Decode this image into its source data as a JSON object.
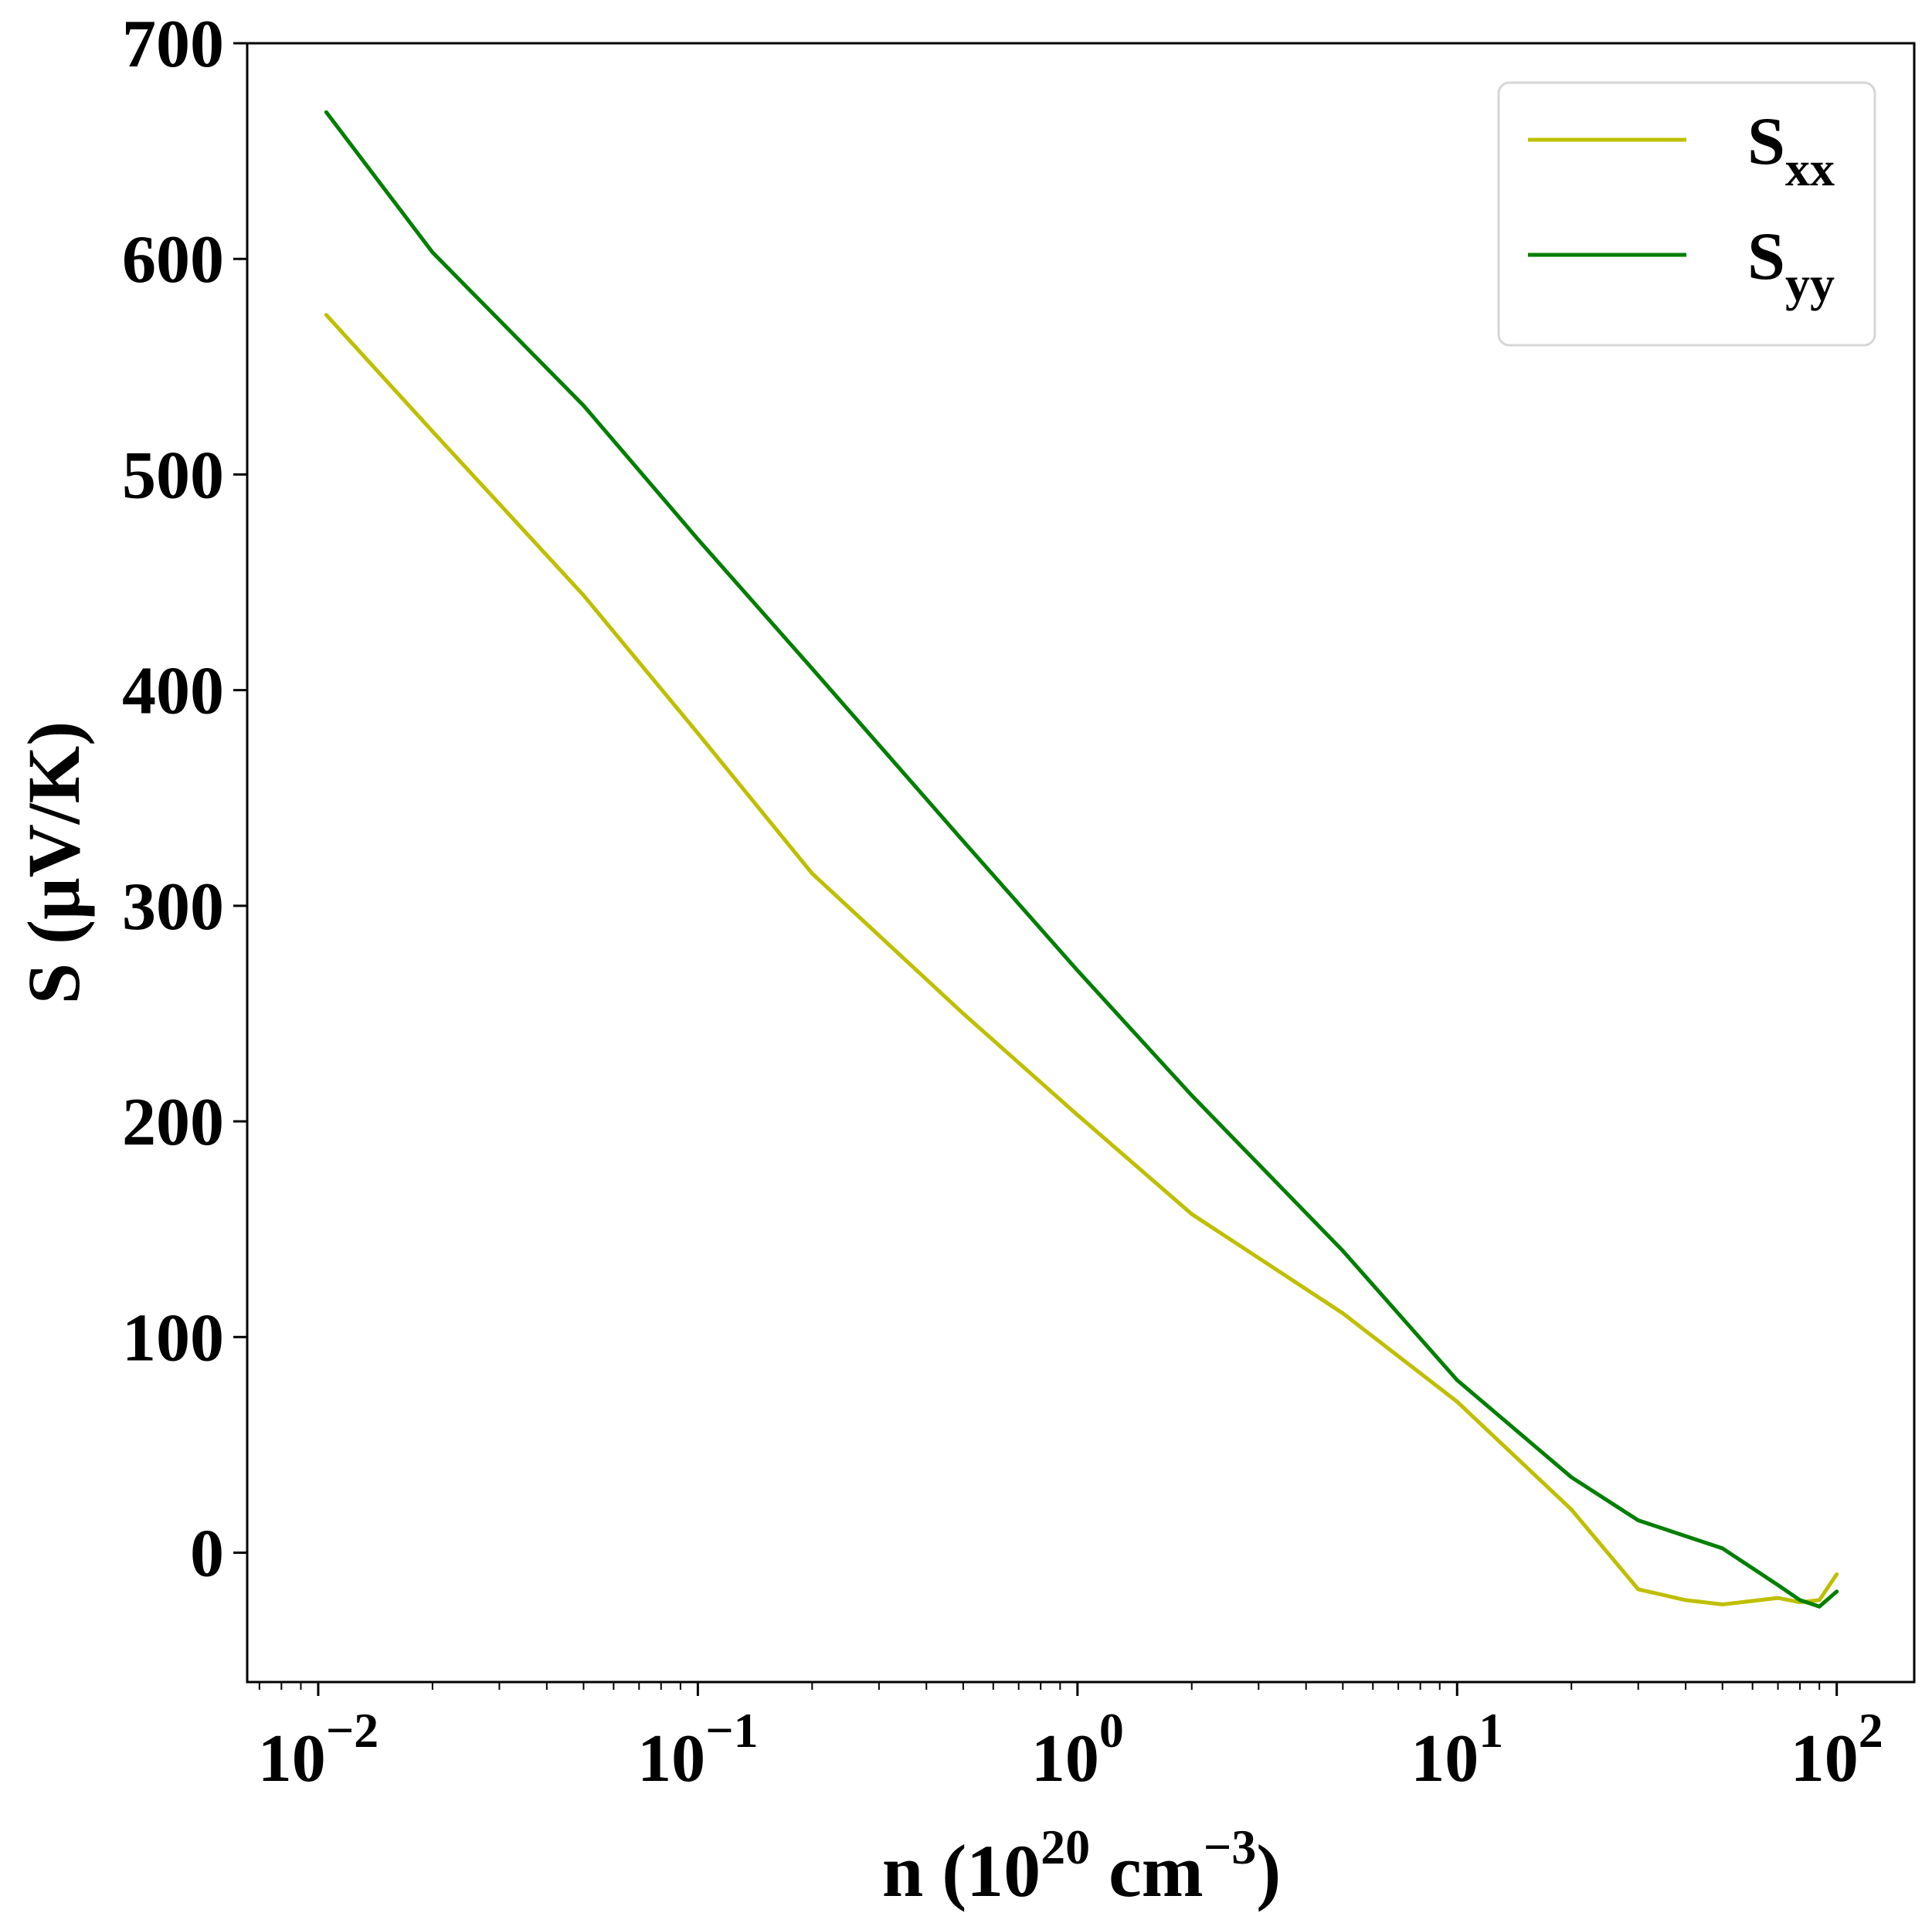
{
  "chart_data": {
    "type": "line",
    "xscale": "log",
    "xlim": [
      0.0065,
      160
    ],
    "ylim": [
      -60,
      700
    ],
    "grid": false,
    "legend_position": "top-right",
    "xlabel": {
      "base": "n (10",
      "sup1": "20",
      "mid": " cm",
      "sup2": "−3",
      "end": ")"
    },
    "ylabel": "S (μV/K)",
    "x_ticks": [
      {
        "value": 0.01,
        "base": "10",
        "exp": "−2"
      },
      {
        "value": 0.1,
        "base": "10",
        "exp": "−1"
      },
      {
        "value": 1,
        "base": "10",
        "exp": "0"
      },
      {
        "value": 10,
        "base": "10",
        "exp": "1"
      },
      {
        "value": 100,
        "base": "10",
        "exp": "2"
      }
    ],
    "y_ticks": [
      0,
      100,
      200,
      300,
      400,
      500,
      600,
      700
    ],
    "series": [
      {
        "name": "S",
        "name_sub": "xx",
        "color": "#bfbf00",
        "points": [
          [
            0.0105,
            574
          ],
          [
            0.02,
            520
          ],
          [
            0.05,
            444
          ],
          [
            0.1,
            380
          ],
          [
            0.2,
            315
          ],
          [
            0.5,
            250
          ],
          [
            1,
            203
          ],
          [
            2,
            157
          ],
          [
            5,
            111
          ],
          [
            10,
            70
          ],
          [
            20,
            20
          ],
          [
            30,
            -17
          ],
          [
            40,
            -22
          ],
          [
            50,
            -24
          ],
          [
            70,
            -21
          ],
          [
            80,
            -23
          ],
          [
            90,
            -22
          ],
          [
            100,
            -10
          ]
        ]
      },
      {
        "name": "S",
        "name_sub": "yy",
        "color": "#007f00",
        "points": [
          [
            0.0105,
            668
          ],
          [
            0.02,
            603
          ],
          [
            0.05,
            532
          ],
          [
            0.1,
            470
          ],
          [
            0.2,
            410
          ],
          [
            0.5,
            330
          ],
          [
            1,
            270
          ],
          [
            2,
            212
          ],
          [
            5,
            140
          ],
          [
            10,
            80
          ],
          [
            20,
            35
          ],
          [
            30,
            15
          ],
          [
            50,
            2
          ],
          [
            70,
            -15
          ],
          [
            80,
            -22
          ],
          [
            90,
            -25
          ],
          [
            100,
            -18
          ]
        ]
      }
    ]
  }
}
